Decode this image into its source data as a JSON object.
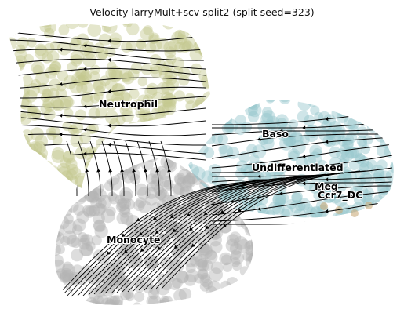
{
  "chart_data": {
    "type": "scatter",
    "subtype": "velocity-stream-embedding",
    "title": "Velocity larryMult+scv split2 (split seed=323)",
    "xlabel": "",
    "ylabel": "",
    "grid": false,
    "axes_visible": false,
    "colors": {
      "Neutrophil": "#c3c78f",
      "Monocyte": "#b4b4b4",
      "Undifferentiated": "#94c6cd",
      "Baso": "#94c6cd",
      "Meg": "#94c6cd",
      "Ccr7_DC": "#c4a46f",
      "stream": "#000000"
    },
    "cluster_labels": [
      {
        "key": "neutrophil",
        "text": "Neutrophil"
      },
      {
        "key": "baso",
        "text": "Baso"
      },
      {
        "key": "undifferentiated",
        "text": "Undifferentiated"
      },
      {
        "key": "meg",
        "text": "Meg"
      },
      {
        "key": "ccr7_dc",
        "text": "Ccr7_DC"
      },
      {
        "key": "monocyte",
        "text": "Monocyte"
      }
    ]
  }
}
